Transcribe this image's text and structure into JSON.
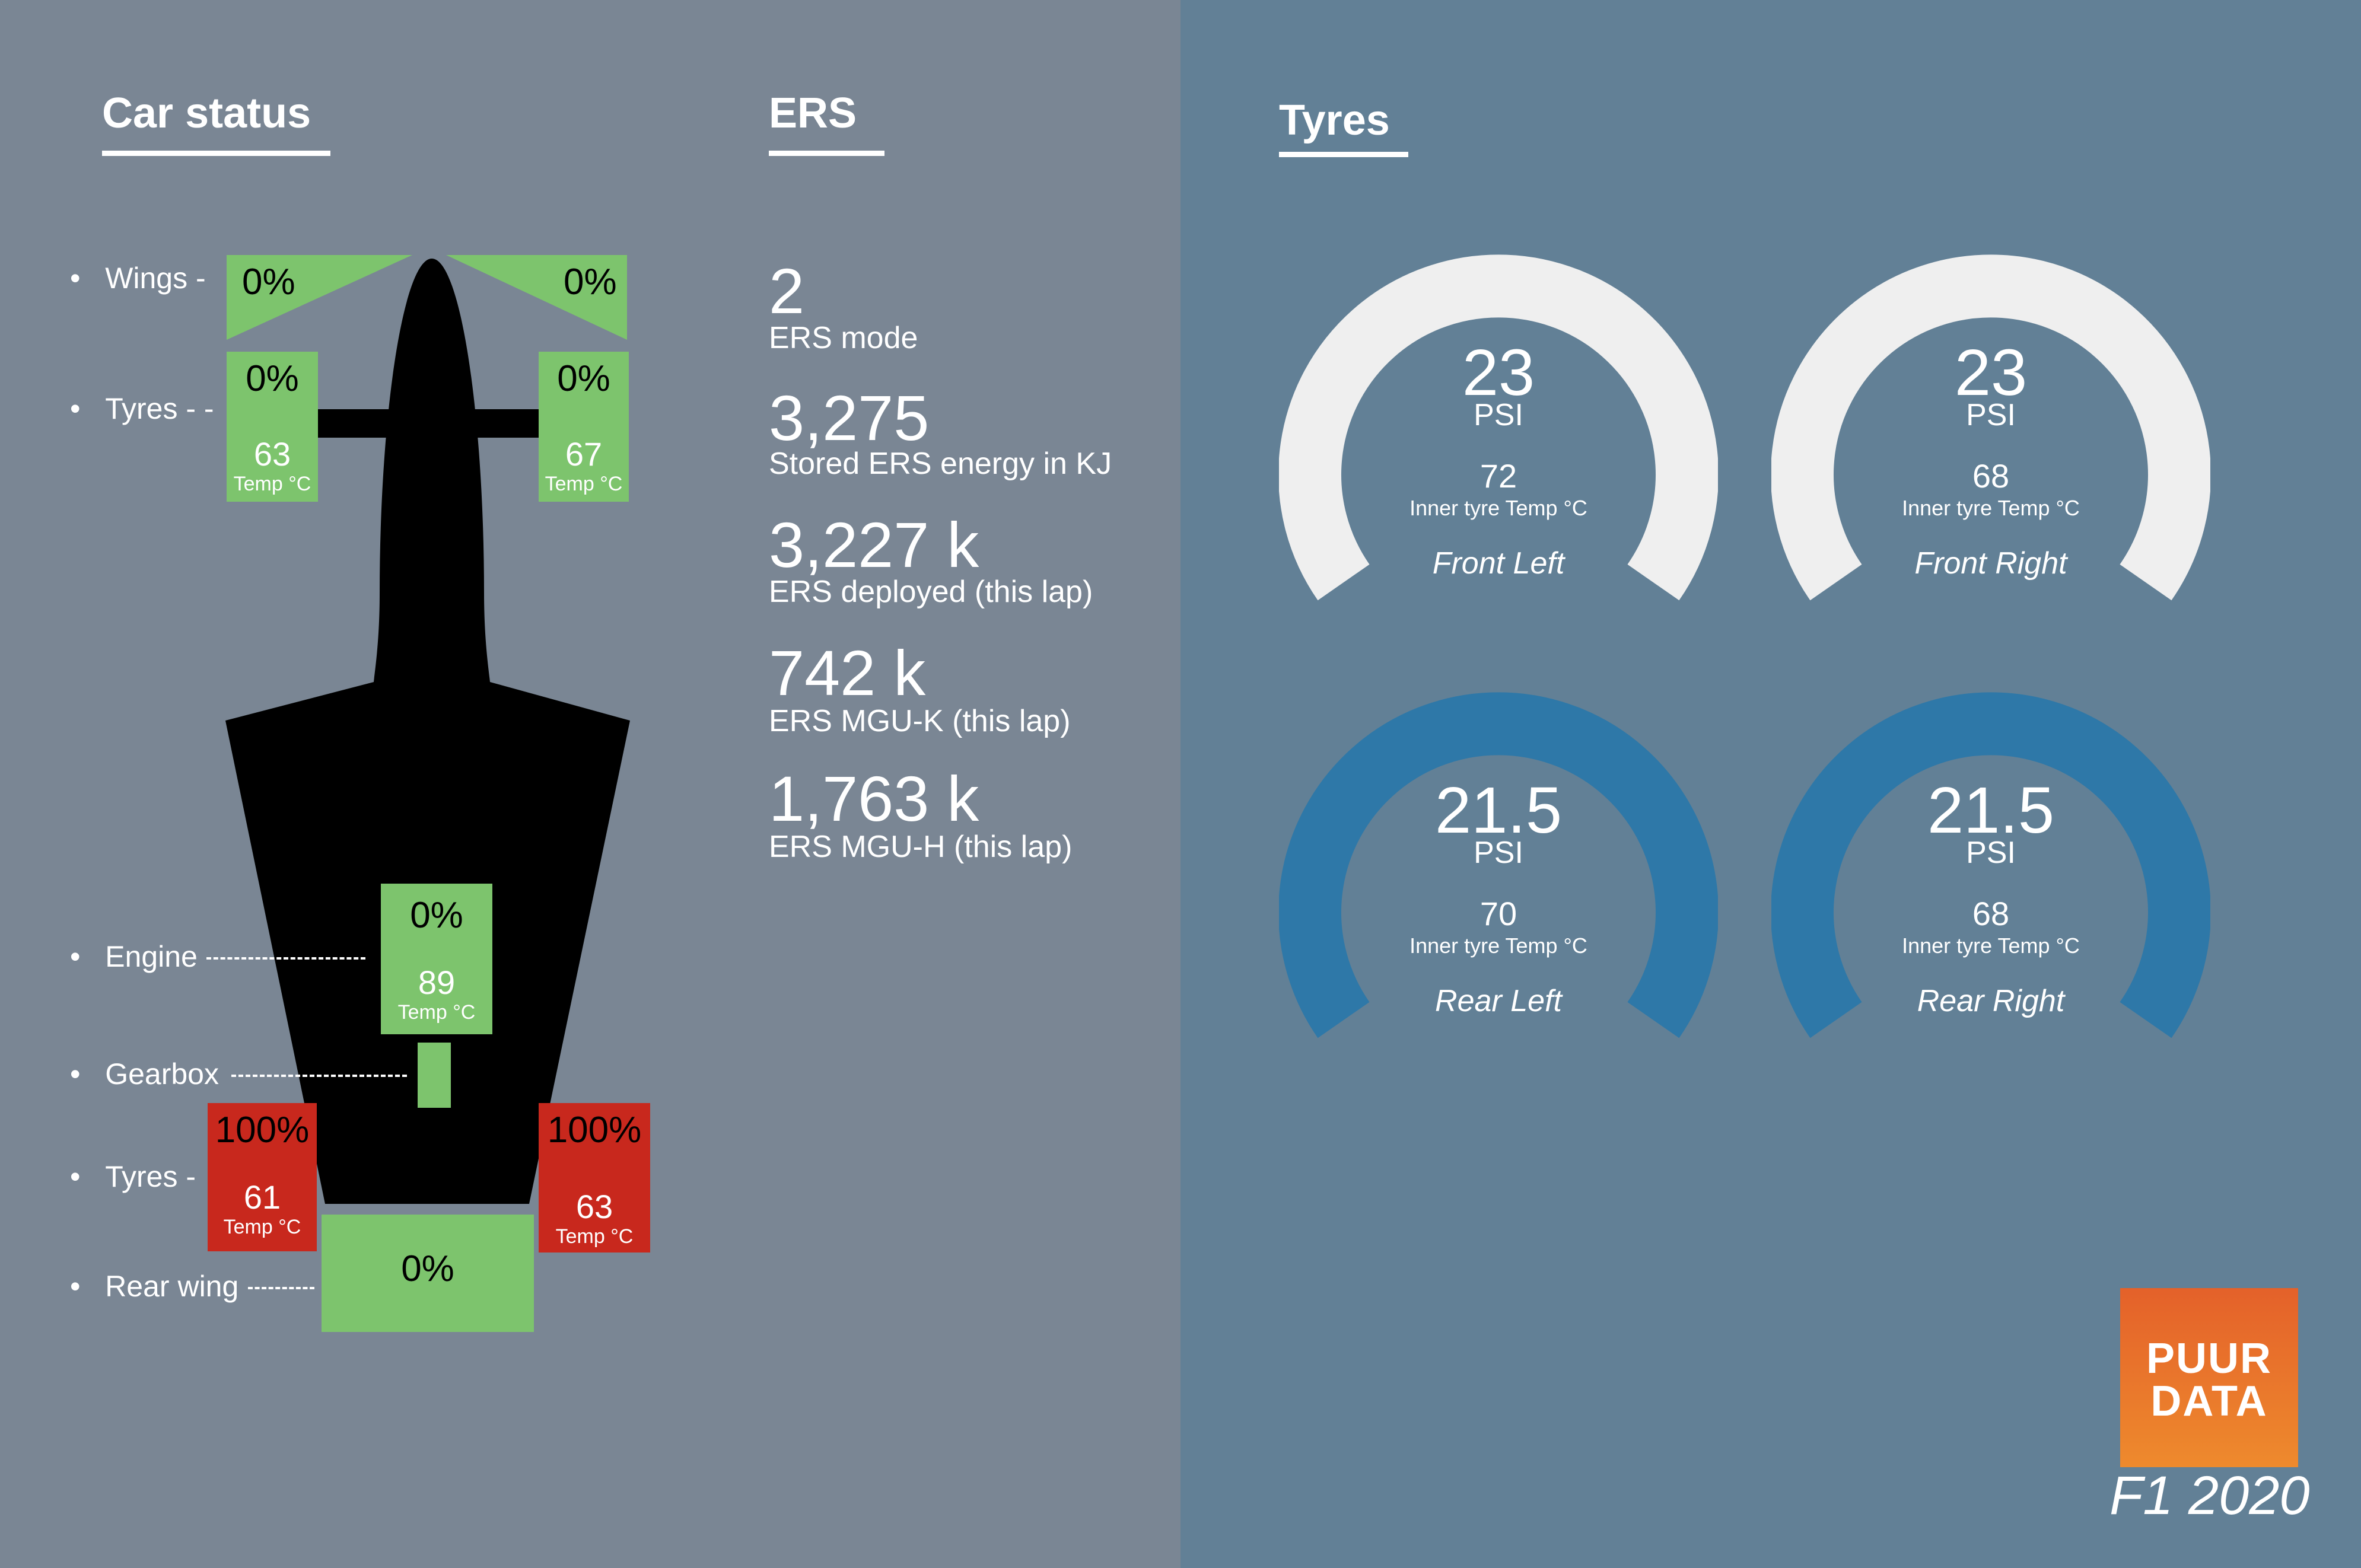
{
  "sections": {
    "car_status": "Car status",
    "ers": "ERS",
    "tyres": "Tyres"
  },
  "car_status": {
    "labels": {
      "wings": "Wings -",
      "front_tyres": "Tyres - -",
      "engine": "Engine",
      "gearbox": "Gearbox",
      "rear_tyres": "Tyres -",
      "rear_wing": "Rear wing"
    },
    "bullet": "•",
    "temp_label": "Temp °C",
    "front_wing_left": "0%",
    "front_wing_right": "0%",
    "front_left_tyre": {
      "wear": "0%",
      "temp": "63"
    },
    "front_right_tyre": {
      "wear": "0%",
      "temp": "67"
    },
    "engine": {
      "wear": "0%",
      "temp": "89"
    },
    "rear_left_tyre": {
      "wear": "100%",
      "temp": "61"
    },
    "rear_right_tyre": {
      "wear": "100%",
      "temp": "63"
    },
    "rear_wing": "0%",
    "colors": {
      "ok": "#7dc46d",
      "damaged": "#c8281d",
      "car": "#000000"
    }
  },
  "ers": [
    {
      "value": "2",
      "label": "ERS mode"
    },
    {
      "value": "3,275",
      "label": "Stored ERS energy in KJ"
    },
    {
      "value": "3,227 k",
      "label": "ERS deployed (this lap)"
    },
    {
      "value": "742 k",
      "label": "ERS MGU-K (this lap)"
    },
    {
      "value": "1,763 k",
      "label": "ERS MGU-H (this lap)"
    }
  ],
  "tyres": {
    "unit": "PSI",
    "inner_temp_label": "Inner tyre Temp °C",
    "gauges": [
      {
        "psi": "23",
        "temp": "72",
        "position": "Front Left",
        "color": "#efefef"
      },
      {
        "psi": "23",
        "temp": "68",
        "position": "Front Right",
        "color": "#efefef"
      },
      {
        "psi": "21.5",
        "temp": "70",
        "position": "Rear Left",
        "color": "#2e78a8"
      },
      {
        "psi": "21.5",
        "temp": "68",
        "position": "Rear Right",
        "color": "#2e78a8"
      }
    ]
  },
  "brand": {
    "logo_line1": "PUUR",
    "logo_line2": "DATA",
    "caption": "F1 2020",
    "color": "#e8702c"
  }
}
